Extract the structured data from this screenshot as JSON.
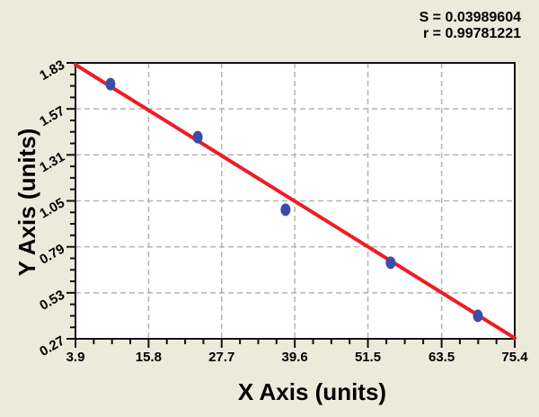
{
  "page": {
    "background_color": "#ECEADB",
    "description": "Standard-curve scatter plot with linear regression fit"
  },
  "stats_panel": {
    "s_line": "S = 0.03989604",
    "r_line": "r = 0.99781221",
    "S": 0.03989604,
    "r": 0.99781221
  },
  "chart_data": {
    "type": "scatter",
    "title": "",
    "xlabel": "X Axis (units)",
    "ylabel": "Y Axis (units)",
    "annotations": [
      "S = 0.03989604",
      "r = 0.99781221"
    ],
    "xlim": [
      3.9,
      75.4
    ],
    "ylim": [
      0.27,
      1.83
    ],
    "x_ticks": [
      3.9,
      15.8,
      27.7,
      39.6,
      51.5,
      63.5,
      75.4
    ],
    "x_tick_labels": [
      "3.9",
      "15.8",
      "27.7",
      "39.6",
      "51.5",
      "63.5",
      "75.4"
    ],
    "y_ticks": [
      0.27,
      0.53,
      0.79,
      1.05,
      1.31,
      1.57,
      1.83
    ],
    "y_tick_labels": [
      "0.27",
      "0.53",
      "0.79",
      "1.05",
      "1.31",
      "1.57",
      "1.83"
    ],
    "minor_divisions": 4,
    "grid": "dashed interior gridlines at every major tick",
    "legend": "none",
    "points": [
      [
        9.6,
        1.71
      ],
      [
        23.8,
        1.41
      ],
      [
        38.1,
        1.0
      ],
      [
        55.2,
        0.7
      ],
      [
        69.4,
        0.4
      ]
    ],
    "fit_line": {
      "x1": 3.9,
      "y1": 1.82,
      "x2": 75.4,
      "y2": 0.274
    },
    "colors": {
      "background": "#ECEADB",
      "plot_background": "#FFFFFF",
      "frame": "#111111",
      "grid": "#B3B3B3",
      "fit_line": "#EE1C25",
      "marker": "#3A4EA5",
      "text": "#000000"
    }
  }
}
